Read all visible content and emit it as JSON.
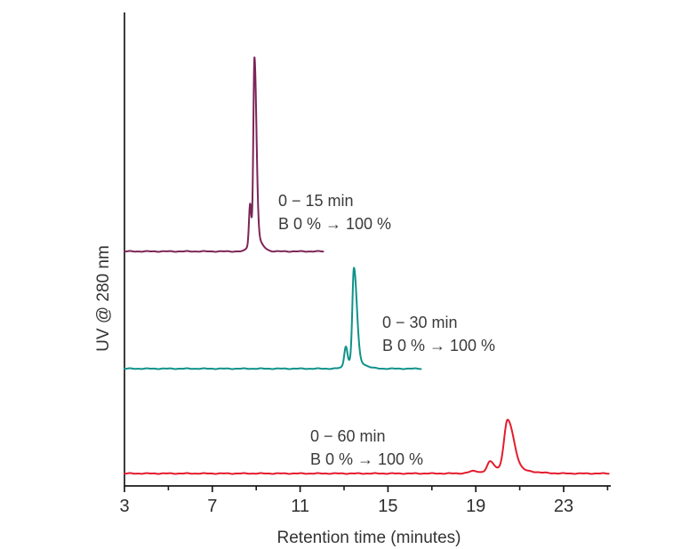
{
  "chart_data": {
    "type": "line",
    "title": "",
    "xlabel": "Retention time (minutes)",
    "ylabel": "UV @ 280 nm",
    "xlim": [
      3,
      25
    ],
    "x_ticks_major": [
      3,
      7,
      11,
      15,
      19,
      23
    ],
    "x_ticks_minor": [
      5,
      9,
      13,
      17,
      21,
      25
    ],
    "y_ticks": [],
    "grid": false,
    "legend_position": "none",
    "axis_color": "#1a1a1a",
    "series": [
      {
        "name": "gradient-0-15-min",
        "color": "#7c2558",
        "row": 0,
        "annotation_lines": [
          "0 − 15 min",
          "B 0 % → 100 %"
        ],
        "x_start": 3,
        "x_end": 12.05,
        "peaks": [
          {
            "retention_min": 8.72,
            "rel_height": 0.212,
            "sigma_left": 0.05,
            "sigma_right": 0.05
          },
          {
            "retention_min": 8.92,
            "rel_height": 1.0,
            "sigma_left": 0.05,
            "sigma_right": 0.09
          }
        ]
      },
      {
        "name": "gradient-0-30-min",
        "color": "#10928a",
        "row": 1,
        "annotation_lines": [
          "0 − 30 min",
          "B 0 % → 100 %"
        ],
        "x_start": 3,
        "x_end": 16.5,
        "peaks": [
          {
            "retention_min": 13.08,
            "rel_height": 0.106,
            "sigma_left": 0.07,
            "sigma_right": 0.07
          },
          {
            "retention_min": 13.45,
            "rel_height": 0.521,
            "sigma_left": 0.07,
            "sigma_right": 0.13
          }
        ]
      },
      {
        "name": "gradient-0-60-min",
        "color": "#e41b2e",
        "row": 2,
        "annotation_lines": [
          "0 − 60 min",
          "B 0 % → 100 %"
        ],
        "x_start": 3,
        "x_end": 25.05,
        "peaks": [
          {
            "retention_min": 18.9,
            "rel_height": 0.012,
            "sigma_left": 0.2,
            "sigma_right": 0.2
          },
          {
            "retention_min": 19.65,
            "rel_height": 0.055,
            "sigma_left": 0.13,
            "sigma_right": 0.18
          },
          {
            "retention_min": 20.45,
            "rel_height": 0.276,
            "sigma_left": 0.16,
            "sigma_right": 0.28
          }
        ]
      }
    ]
  }
}
